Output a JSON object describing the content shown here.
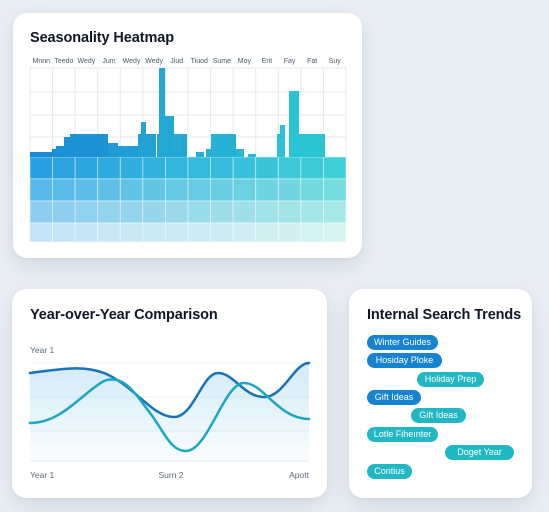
{
  "heatmap": {
    "title": "Seasonality Heatmap",
    "columns": [
      "Mnnn",
      "Teedo",
      "Wedy",
      "Jum",
      "Wedy",
      "Wedy",
      "Jiud",
      "Tiuod",
      "Sume",
      "Moy",
      "Erit",
      "Fay",
      "Fat",
      "Suy"
    ]
  },
  "yoy": {
    "title": "Year-over-Year Comparison",
    "top_label": "Year 1",
    "x_labels": [
      "Year 1",
      "Surn 2",
      "Apott"
    ]
  },
  "search_trends": {
    "title": "Internal Search Trends",
    "pills": [
      {
        "label": "Winter Guides",
        "color": "blue"
      },
      {
        "label": "Hosiday Ploke",
        "color": "blue"
      },
      {
        "label": "Holiday Prep",
        "color": "teal"
      },
      {
        "label": "Gift Ideas",
        "color": "blue"
      },
      {
        "label": "Gift Ideas",
        "color": "teal"
      },
      {
        "label": "Lotle Fiheınter",
        "color": "teal"
      },
      {
        "label": "Doget Year",
        "color": "teal"
      },
      {
        "label": "Contius",
        "color": "teal"
      }
    ]
  },
  "colors": {
    "blue": "#1583cf",
    "teal": "#21b8c4",
    "background": "#e9eef4"
  }
}
